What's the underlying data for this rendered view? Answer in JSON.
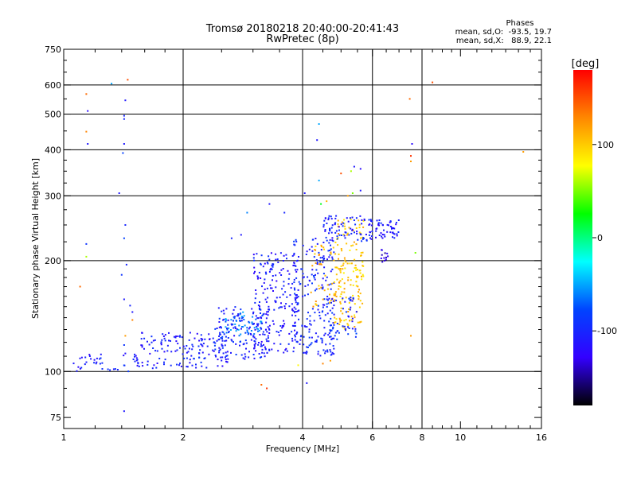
{
  "chart_data": {
    "type": "scatter",
    "title": "Tromsø 20180218 20:40:00-20:41:43",
    "subtitle": "RwPretec (8p)",
    "xlabel": "Frequency [MHz]",
    "ylabel": "Stationary phase Virtual Height [km]",
    "x_scale": "log",
    "y_scale": "log",
    "xlim": [
      1,
      16
    ],
    "ylim": [
      70,
      750
    ],
    "x_ticks": [
      1,
      2,
      4,
      6,
      8,
      10,
      16
    ],
    "y_ticks": [
      75,
      100,
      200,
      300,
      400,
      500,
      600,
      750
    ],
    "x_gridlines": [
      2,
      4,
      6,
      8
    ],
    "y_gridlines": [
      100,
      200,
      300,
      400,
      500,
      600
    ],
    "legend": {
      "title": "Phases",
      "lines": [
        "mean, sd,O:  -93.5, 19.7",
        "mean, sd,X:   88.9, 22.1"
      ]
    },
    "colorbar": {
      "label": "[deg]",
      "range": [
        -180,
        180
      ],
      "ticks": [
        {
          "value": 100,
          "label": "100"
        },
        {
          "value": 0,
          "label": "0"
        },
        {
          "value": -100,
          "label": "-100"
        }
      ],
      "colors": [
        "#ff0000",
        "#ff8800",
        "#ffff00",
        "#00ff00",
        "#00ffff",
        "#0044ff",
        "#3300ff",
        "#000000"
      ]
    },
    "clusters": [
      {
        "x": [
          1.05,
          1.55
        ],
        "y": [
          100,
          112
        ],
        "phase": -105,
        "n": 45
      },
      {
        "x": [
          1.55,
          2.6
        ],
        "y": [
          102,
          128
        ],
        "phase": -105,
        "n": 150
      },
      {
        "x": [
          2.4,
          3.3
        ],
        "y": [
          108,
          150
        ],
        "phase": -100,
        "n": 140
      },
      {
        "x": [
          2.5,
          3.2
        ],
        "y": [
          125,
          145
        ],
        "phase": -65,
        "n": 55
      },
      {
        "x": [
          3.0,
          3.9
        ],
        "y": [
          112,
          210
        ],
        "phase": -110,
        "n": 210
      },
      {
        "x": [
          3.8,
          4.8
        ],
        "y": [
          110,
          230
        ],
        "phase": -100,
        "n": 200
      },
      {
        "x": [
          4.2,
          5.0
        ],
        "y": [
          150,
          220
        ],
        "phase": 110,
        "n": 50
      },
      {
        "x": [
          4.8,
          5.7
        ],
        "y": [
          130,
          260
        ],
        "phase": 100,
        "n": 160
      },
      {
        "x": [
          4.6,
          5.5
        ],
        "y": [
          122,
          160
        ],
        "phase": -95,
        "n": 60
      },
      {
        "x": [
          4.5,
          6.0
        ],
        "y": [
          225,
          265
        ],
        "phase": -105,
        "n": 90
      },
      {
        "x": [
          6.1,
          7.0
        ],
        "y": [
          228,
          258
        ],
        "phase": -110,
        "n": 45
      },
      {
        "x": [
          6.2,
          6.6
        ],
        "y": [
          198,
          215
        ],
        "phase": -130,
        "n": 12
      }
    ],
    "points": [
      {
        "x": 1.14,
        "y": 567,
        "phase": 140
      },
      {
        "x": 1.14,
        "y": 448,
        "phase": 130
      },
      {
        "x": 1.15,
        "y": 510,
        "phase": -120
      },
      {
        "x": 1.15,
        "y": 415,
        "phase": -110
      },
      {
        "x": 1.14,
        "y": 222,
        "phase": -90
      },
      {
        "x": 1.14,
        "y": 205,
        "phase": 60
      },
      {
        "x": 1.1,
        "y": 170,
        "phase": 140
      },
      {
        "x": 1.32,
        "y": 605,
        "phase": -50
      },
      {
        "x": 1.45,
        "y": 620,
        "phase": 150
      },
      {
        "x": 1.43,
        "y": 545,
        "phase": -110
      },
      {
        "x": 1.42,
        "y": 495,
        "phase": -100
      },
      {
        "x": 1.42,
        "y": 485,
        "phase": -100
      },
      {
        "x": 1.42,
        "y": 415,
        "phase": -110
      },
      {
        "x": 1.41,
        "y": 392,
        "phase": -80
      },
      {
        "x": 1.38,
        "y": 305,
        "phase": -110
      },
      {
        "x": 1.43,
        "y": 250,
        "phase": -100
      },
      {
        "x": 1.42,
        "y": 230,
        "phase": -80
      },
      {
        "x": 1.44,
        "y": 195,
        "phase": -100
      },
      {
        "x": 1.4,
        "y": 183,
        "phase": -90
      },
      {
        "x": 1.42,
        "y": 157,
        "phase": -110
      },
      {
        "x": 1.47,
        "y": 151,
        "phase": -100
      },
      {
        "x": 1.49,
        "y": 145,
        "phase": -110
      },
      {
        "x": 1.49,
        "y": 138,
        "phase": 130
      },
      {
        "x": 1.43,
        "y": 125,
        "phase": 120
      },
      {
        "x": 1.42,
        "y": 118,
        "phase": -90
      },
      {
        "x": 1.42,
        "y": 78,
        "phase": -110
      },
      {
        "x": 3.15,
        "y": 92,
        "phase": 140
      },
      {
        "x": 3.25,
        "y": 90,
        "phase": 160
      },
      {
        "x": 4.1,
        "y": 93,
        "phase": -110
      },
      {
        "x": 4.4,
        "y": 470,
        "phase": -50
      },
      {
        "x": 4.35,
        "y": 425,
        "phase": -110
      },
      {
        "x": 4.05,
        "y": 305,
        "phase": -110
      },
      {
        "x": 4.4,
        "y": 330,
        "phase": -50
      },
      {
        "x": 4.45,
        "y": 285,
        "phase": 20
      },
      {
        "x": 4.6,
        "y": 290,
        "phase": 110
      },
      {
        "x": 5.0,
        "y": 345,
        "phase": 150
      },
      {
        "x": 5.3,
        "y": 350,
        "phase": 60
      },
      {
        "x": 5.4,
        "y": 360,
        "phase": -110
      },
      {
        "x": 5.6,
        "y": 355,
        "phase": -120
      },
      {
        "x": 5.35,
        "y": 305,
        "phase": 50
      },
      {
        "x": 5.2,
        "y": 300,
        "phase": 120
      },
      {
        "x": 5.6,
        "y": 310,
        "phase": -110
      },
      {
        "x": 3.3,
        "y": 285,
        "phase": -110
      },
      {
        "x": 3.6,
        "y": 270,
        "phase": -100
      },
      {
        "x": 2.9,
        "y": 270,
        "phase": -60
      },
      {
        "x": 2.8,
        "y": 235,
        "phase": -110
      },
      {
        "x": 2.65,
        "y": 230,
        "phase": -100
      },
      {
        "x": 4.5,
        "y": 105,
        "phase": 130
      },
      {
        "x": 4.7,
        "y": 107,
        "phase": 120
      },
      {
        "x": 3.9,
        "y": 104,
        "phase": 80
      },
      {
        "x": 7.45,
        "y": 550,
        "phase": 140
      },
      {
        "x": 7.55,
        "y": 415,
        "phase": -120
      },
      {
        "x": 7.5,
        "y": 385,
        "phase": 160
      },
      {
        "x": 7.5,
        "y": 372,
        "phase": 120
      },
      {
        "x": 7.7,
        "y": 210,
        "phase": 50
      },
      {
        "x": 7.5,
        "y": 125,
        "phase": 120
      },
      {
        "x": 8.5,
        "y": 610,
        "phase": 150
      },
      {
        "x": 14.4,
        "y": 395,
        "phase": 120
      }
    ]
  }
}
